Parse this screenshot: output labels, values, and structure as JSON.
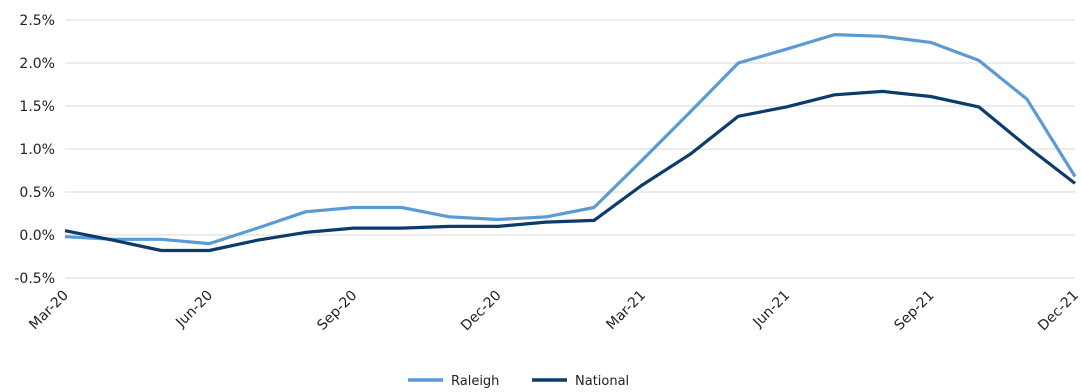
{
  "chart_data": {
    "type": "line",
    "x": [
      "Mar-20",
      "Apr-20",
      "May-20",
      "Jun-20",
      "Jul-20",
      "Aug-20",
      "Sep-20",
      "Oct-20",
      "Nov-20",
      "Dec-20",
      "Jan-21",
      "Feb-21",
      "Mar-21",
      "Apr-21",
      "May-21",
      "Jun-21",
      "Jul-21",
      "Aug-21",
      "Sep-21",
      "Oct-21",
      "Nov-21",
      "Dec-21"
    ],
    "xtick_labels": [
      "Mar-20",
      "Jun-20",
      "Sep-20",
      "Dec-20",
      "Mar-21",
      "Jun-21",
      "Sep-21",
      "Dec-21"
    ],
    "ytick_labels": [
      "2.5%",
      "2.0%",
      "1.5%",
      "1.0%",
      "0.5%",
      "0.0%",
      "-0.5%"
    ],
    "ytick_values": [
      2.5,
      2.0,
      1.5,
      1.0,
      0.5,
      0.0,
      -0.5
    ],
    "ylim": [
      -0.5,
      2.5
    ],
    "grid": "horizontal",
    "legend_position": "bottom-center",
    "series": [
      {
        "name": "Raleigh",
        "color": "#5B9BD5",
        "values": [
          -0.02,
          -0.05,
          -0.05,
          -0.1,
          0.08,
          0.27,
          0.32,
          0.32,
          0.21,
          0.18,
          0.21,
          0.32,
          0.87,
          1.43,
          2.0,
          2.16,
          2.33,
          2.31,
          2.24,
          2.03,
          1.58,
          0.68
        ]
      },
      {
        "name": "National",
        "color": "#0B3C6B",
        "values": [
          0.05,
          -0.06,
          -0.18,
          -0.18,
          -0.06,
          0.03,
          0.08,
          0.08,
          0.1,
          0.1,
          0.15,
          0.17,
          0.58,
          0.94,
          1.38,
          1.49,
          1.63,
          1.67,
          1.61,
          1.49,
          1.03,
          0.6
        ]
      }
    ]
  }
}
